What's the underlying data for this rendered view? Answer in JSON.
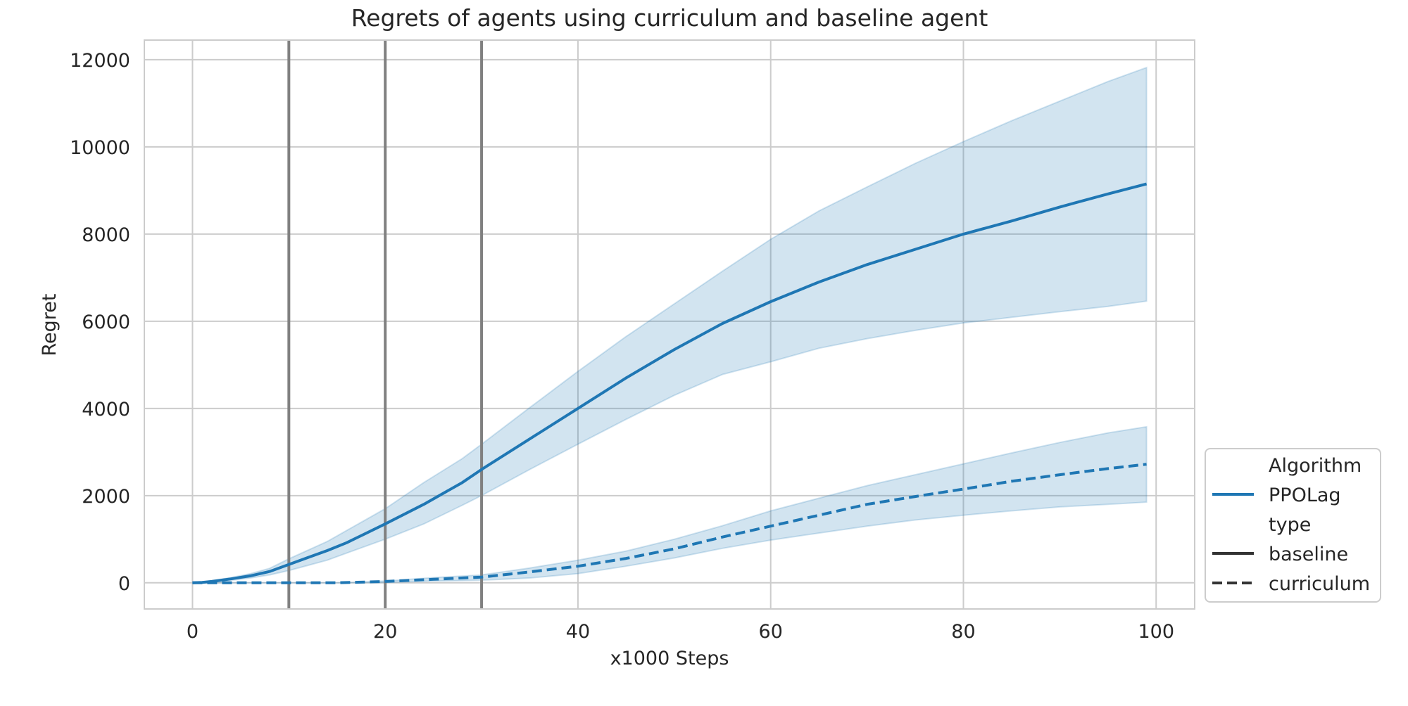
{
  "chart_data": {
    "type": "line",
    "title": "Regrets of agents using curriculum and baseline agent",
    "xlabel": "x1000 Steps",
    "ylabel": "Regret",
    "xlim": [
      -5,
      104
    ],
    "ylim": [
      -600,
      12450
    ],
    "xticks": [
      0,
      20,
      40,
      60,
      80,
      100
    ],
    "yticks": [
      0,
      2000,
      4000,
      6000,
      8000,
      10000,
      12000
    ],
    "grid": true,
    "legend_position": "outside-right-bottom",
    "vertical_markers": [
      10,
      20,
      30
    ],
    "colors": {
      "series": "#1f77b4",
      "band": "#1f77b4",
      "marker_line": "#808080",
      "grid": "#cccccc",
      "legend_line": "#333333"
    },
    "legend": {
      "hue_title": "Algorithm",
      "hue_entries": [
        "PPOLag"
      ],
      "style_title": "type",
      "style_entries": [
        "baseline",
        "curriculum"
      ]
    },
    "series": [
      {
        "name": "PPOLag",
        "type": "baseline",
        "style": "solid",
        "x": [
          0,
          1,
          2,
          4,
          6,
          8,
          10,
          12,
          14,
          16,
          20,
          24,
          28,
          30,
          35,
          40,
          45,
          50,
          55,
          60,
          65,
          70,
          75,
          80,
          85,
          90,
          95,
          99
        ],
        "y": [
          0,
          10,
          30,
          90,
          160,
          260,
          420,
          580,
          740,
          920,
          1350,
          1800,
          2300,
          2600,
          3300,
          4000,
          4700,
          5350,
          5950,
          6450,
          6900,
          7300,
          7650,
          8000,
          8300,
          8620,
          8920,
          9150
        ],
        "lower": [
          0,
          5,
          15,
          60,
          110,
          180,
          280,
          400,
          520,
          680,
          1000,
          1350,
          1780,
          2000,
          2600,
          3180,
          3750,
          4300,
          4780,
          5070,
          5380,
          5600,
          5790,
          5960,
          6090,
          6220,
          6340,
          6460
        ],
        "upper": [
          0,
          15,
          50,
          120,
          210,
          330,
          550,
          750,
          950,
          1200,
          1700,
          2300,
          2850,
          3180,
          4020,
          4850,
          5650,
          6400,
          7150,
          7880,
          8530,
          9080,
          9620,
          10120,
          10600,
          11050,
          11500,
          11820
        ]
      },
      {
        "name": "PPOLag",
        "type": "curriculum",
        "style": "dashed",
        "x": [
          0,
          5,
          10,
          15,
          20,
          25,
          30,
          35,
          40,
          45,
          50,
          55,
          60,
          65,
          70,
          75,
          80,
          85,
          90,
          95,
          99
        ],
        "y": [
          0,
          0,
          0,
          0,
          30,
          80,
          130,
          250,
          380,
          560,
          780,
          1050,
          1300,
          1550,
          1800,
          1980,
          2150,
          2330,
          2480,
          2620,
          2720
        ],
        "lower": [
          0,
          0,
          0,
          0,
          10,
          40,
          60,
          110,
          210,
          380,
          570,
          790,
          980,
          1140,
          1300,
          1440,
          1550,
          1650,
          1740,
          1800,
          1850
        ],
        "upper": [
          0,
          0,
          0,
          0,
          40,
          120,
          180,
          340,
          520,
          730,
          1000,
          1310,
          1650,
          1940,
          2230,
          2480,
          2730,
          2980,
          3220,
          3440,
          3580
        ]
      }
    ]
  }
}
